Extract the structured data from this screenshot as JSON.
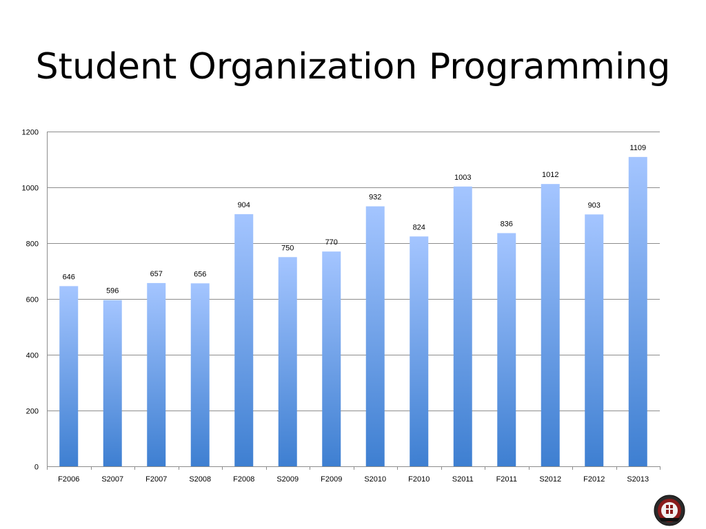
{
  "slide": {
    "title": "Student Organization Programming"
  },
  "colors": {
    "bar_top": "#a4c5ff",
    "bar_bottom": "#3e7fd1",
    "grid": "#8c8c8c"
  },
  "chart_data": {
    "type": "bar",
    "title": "Student Organization Programming",
    "xlabel": "",
    "ylabel": "",
    "categories": [
      "F2006",
      "S2007",
      "F2007",
      "S2008",
      "F2008",
      "S2009",
      "F2009",
      "S2010",
      "F2010",
      "S2011",
      "F2011",
      "S2012",
      "F2012",
      "S2013"
    ],
    "values": [
      646,
      596,
      657,
      656,
      904,
      750,
      770,
      932,
      824,
      1003,
      836,
      1012,
      903,
      1109
    ],
    "ylim": [
      0,
      1200
    ],
    "yticks": [
      0,
      200,
      400,
      600,
      800,
      1000,
      1200
    ],
    "grid": true,
    "legend": "none",
    "data_labels": true
  },
  "logo": {
    "name": "university-seal"
  }
}
